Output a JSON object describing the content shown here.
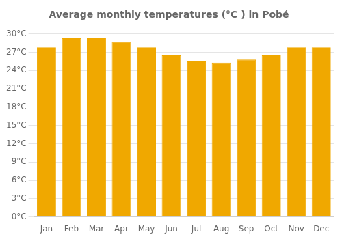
{
  "chart_data": {
    "type": "bar",
    "title": "Average monthly temperatures (°C ) in Pobé",
    "categories": [
      "Jan",
      "Feb",
      "Mar",
      "Apr",
      "May",
      "Jun",
      "Jul",
      "Aug",
      "Sep",
      "Oct",
      "Nov",
      "Dec"
    ],
    "values": [
      27.8,
      29.3,
      29.3,
      28.7,
      27.8,
      26.5,
      25.5,
      25.3,
      25.8,
      26.5,
      27.8,
      27.8
    ],
    "color": "#F0A800",
    "ylim": [
      0,
      31
    ],
    "yticks": [
      {
        "value": 0,
        "label": "0°C"
      },
      {
        "value": 3,
        "label": "3°C"
      },
      {
        "value": 6,
        "label": "6°C"
      },
      {
        "value": 9,
        "label": "9°C"
      },
      {
        "value": 12,
        "label": "12°C"
      },
      {
        "value": 15,
        "label": "15°C"
      },
      {
        "value": 18,
        "label": "18°C"
      },
      {
        "value": 21,
        "label": "21°C"
      },
      {
        "value": 24,
        "label": "24°C"
      },
      {
        "value": 27,
        "label": "27°C"
      },
      {
        "value": 30,
        "label": "30°C"
      }
    ],
    "grid": true
  }
}
